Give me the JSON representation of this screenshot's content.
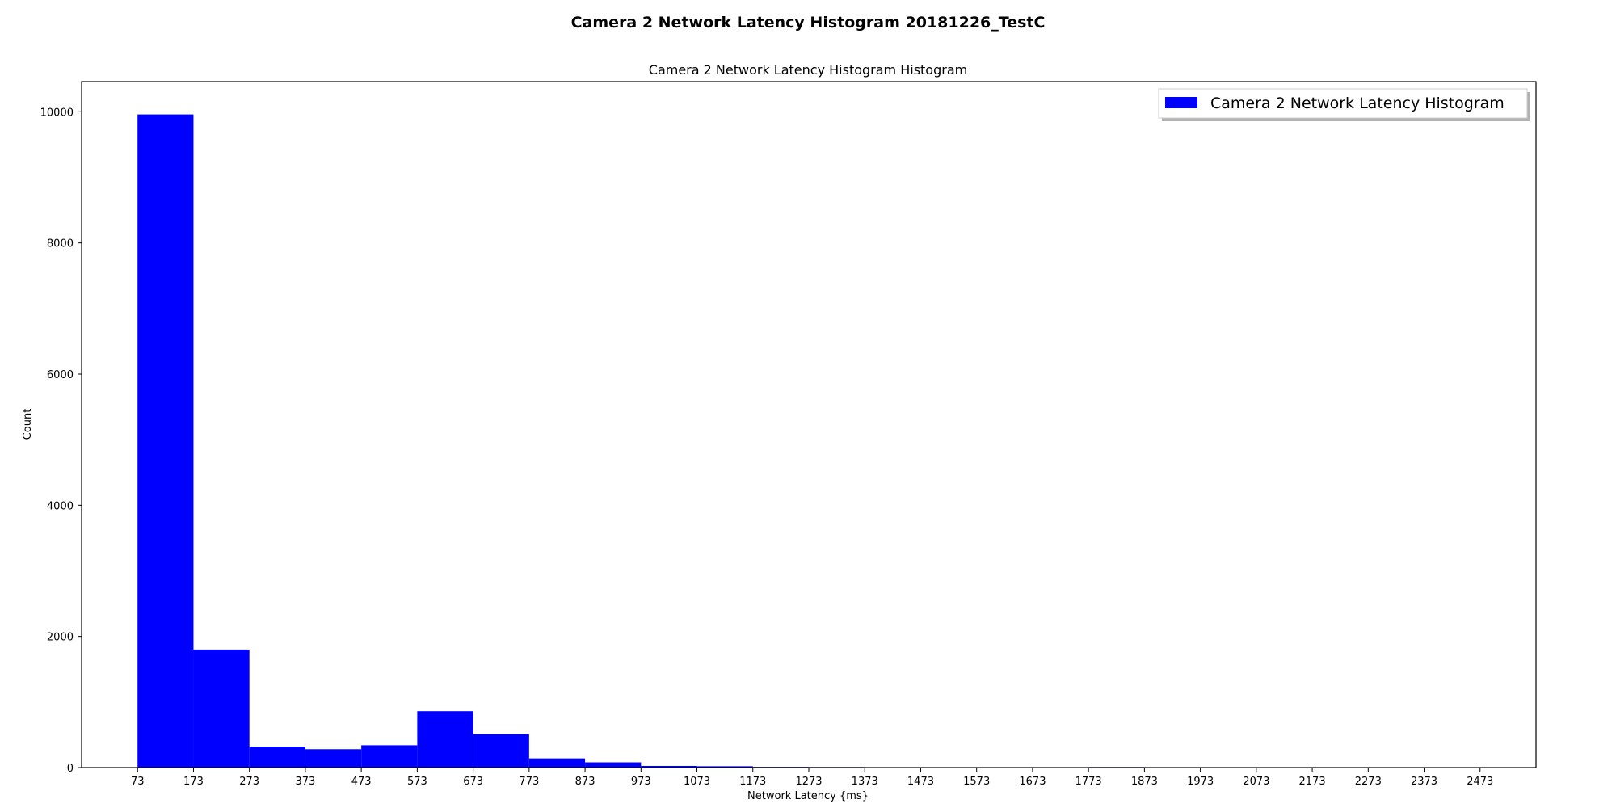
{
  "chart_data": {
    "type": "bar",
    "title": "Camera 2 Network Latency Histogram 20181226_TestC",
    "subtitle": "Camera 2 Network Latency Histogram Histogram",
    "xlabel": "Network Latency {ms}",
    "ylabel": "Count",
    "xlim": [
      -27,
      2573
    ],
    "ylim": [
      0,
      10460
    ],
    "x_ticks": [
      73,
      173,
      273,
      373,
      473,
      573,
      673,
      773,
      873,
      973,
      1073,
      1173,
      1273,
      1373,
      1473,
      1573,
      1673,
      1773,
      1873,
      1973,
      2073,
      2173,
      2273,
      2373,
      2473
    ],
    "y_ticks": [
      0,
      2000,
      4000,
      6000,
      8000,
      10000
    ],
    "bin_edges": [
      73,
      173,
      273,
      373,
      473,
      573,
      673,
      773,
      873,
      973,
      1073,
      1173,
      1273,
      1373,
      1473,
      1573,
      1673,
      1773,
      1873,
      1973
    ],
    "values": [
      9960,
      1800,
      320,
      280,
      340,
      860,
      510,
      140,
      80,
      25,
      20,
      10,
      8,
      6,
      5,
      0,
      0,
      8,
      6
    ],
    "grid": false,
    "legend_position": "top-right",
    "series": [
      {
        "name": "Camera 2 Network Latency Histogram",
        "color": "#0000ff"
      }
    ]
  }
}
